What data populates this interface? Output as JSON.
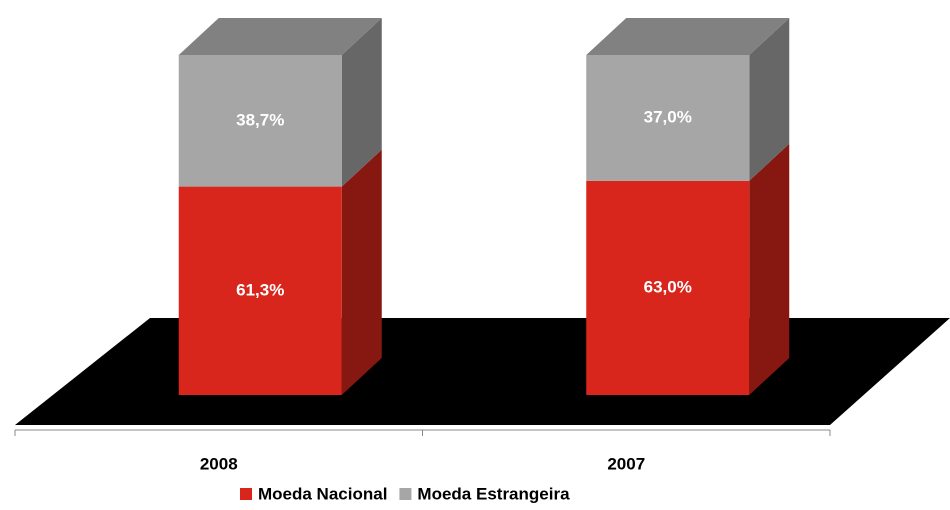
{
  "chart_data": {
    "type": "bar3d_stacked",
    "categories": [
      "2008",
      "2007"
    ],
    "series": [
      {
        "name": "Moeda Nacional",
        "color": "#d9261c",
        "values": [
          61.3,
          63.0
        ],
        "value_labels": [
          "61,3%",
          "63,0%"
        ]
      },
      {
        "name": "Moeda Estrangeira",
        "color": "#a6a6a6",
        "values": [
          38.7,
          37.0
        ],
        "value_labels": [
          "38,7%",
          "37,0%"
        ]
      }
    ]
  }
}
